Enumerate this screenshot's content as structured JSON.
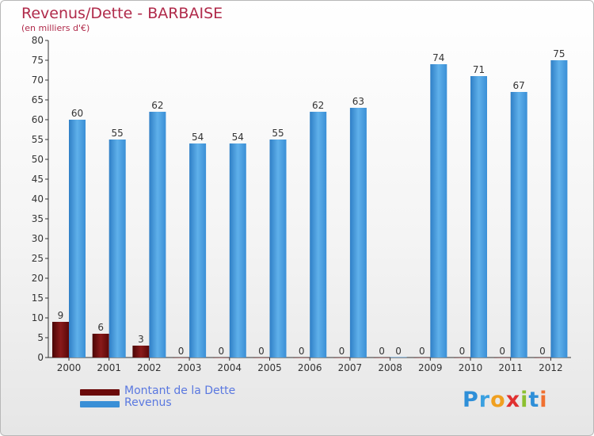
{
  "chart_data": {
    "type": "bar",
    "title": "Revenus/Dette - BARBAISE",
    "subtitle": "(en milliers d'€)",
    "categories": [
      "2000",
      "2001",
      "2002",
      "2003",
      "2004",
      "2005",
      "2006",
      "2007",
      "2008",
      "2009",
      "2010",
      "2011",
      "2012"
    ],
    "series": [
      {
        "name": "Montant de la Dette",
        "color": "#6b0a0a",
        "values": [
          9,
          6,
          3,
          0,
          0,
          0,
          0,
          0,
          0,
          0,
          0,
          0,
          0
        ]
      },
      {
        "name": "Revenus",
        "color": "#3a8fd6",
        "values": [
          60,
          55,
          62,
          54,
          54,
          55,
          62,
          63,
          0,
          74,
          71,
          67,
          75
        ]
      }
    ],
    "ylim": [
      0,
      80
    ],
    "yticks": [
      0,
      5,
      10,
      15,
      20,
      25,
      30,
      35,
      40,
      45,
      50,
      55,
      60,
      65,
      70,
      75,
      80
    ],
    "grid": false,
    "legend_position": "bottom-left"
  },
  "logo": {
    "text": "Proxiti",
    "letters": [
      "P",
      "r",
      "o",
      "x",
      "i",
      "t",
      "i"
    ],
    "colors": [
      "#2e8fd8",
      "#3aa0e0",
      "#f0a020",
      "#e03030",
      "#8cc030",
      "#2e8fd8",
      "#f07030"
    ]
  }
}
